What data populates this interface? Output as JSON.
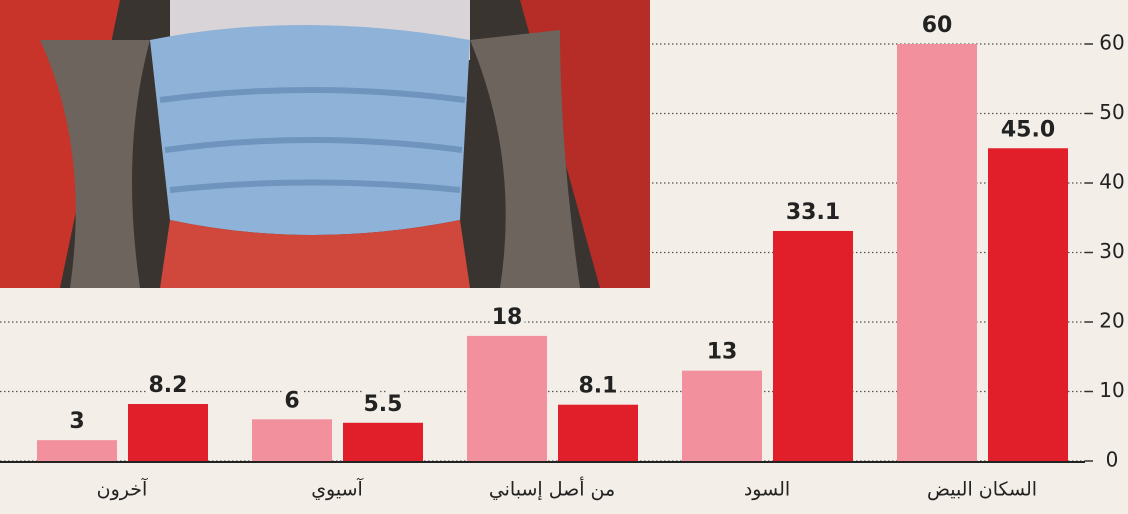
{
  "chart_data": {
    "type": "bar",
    "categories": [
      "آخرون",
      "آسيوي",
      "من أصل إسباني",
      "السود",
      "السكان البيض"
    ],
    "series": [
      {
        "color": "#f2909e",
        "values": [
          3,
          6,
          18,
          13,
          60
        ]
      },
      {
        "color": "#e01f2b",
        "values": [
          8.2,
          5.5,
          8.1,
          33.1,
          45
        ],
        "value_labels": [
          "8.2",
          "5.5",
          "8.1",
          "33.1",
          "45.0"
        ]
      }
    ],
    "ylim": [
      0,
      60
    ],
    "yticks": [
      0,
      10,
      20,
      30,
      40,
      50,
      60
    ],
    "grid": true
  }
}
